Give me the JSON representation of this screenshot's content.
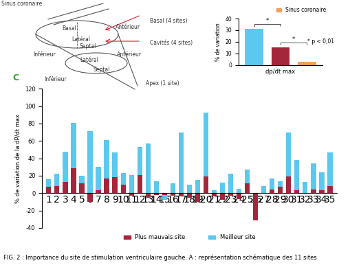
{
  "diagram": {
    "labels": [
      "Sinus coronaire",
      "Basal (4 sites)",
      "Cavités (4 sites)",
      "Apex (1 site)",
      "Basal",
      "Antérieur",
      "Latéral",
      "Septal",
      "Inférieur",
      "Antérieur",
      "Latéral",
      "Septal",
      "Inférieur"
    ]
  },
  "chart_data": [
    {
      "type": "bar",
      "title": "C",
      "y_label": "% de variation de la dP/dt max",
      "categories": [
        "1",
        "2",
        "3",
        "4",
        "5",
        "6",
        "7",
        "8",
        "9",
        "10",
        "11",
        "12",
        "13",
        "14",
        "15",
        "16",
        "17",
        "18",
        "19",
        "20",
        "21",
        "22",
        "23",
        "24",
        "25",
        "26",
        "27",
        "28",
        "29",
        "30",
        "31",
        "32",
        "33",
        "34",
        "35"
      ],
      "series": [
        {
          "name": "Plus mauvais site",
          "color": "#a3263a",
          "values": [
            7,
            8,
            13,
            29,
            11,
            -10,
            3,
            17,
            18,
            10,
            -3,
            21,
            -5,
            -2,
            -2,
            -3,
            -4,
            -5,
            -10,
            19,
            -4,
            -8,
            -3,
            -7,
            11,
            -31,
            0,
            4,
            7,
            19,
            3,
            0,
            4,
            3,
            8
          ]
        },
        {
          "name": "Meilleur site",
          "color": "#5bc8ee",
          "values": [
            16,
            22,
            48,
            81,
            20,
            71,
            30,
            61,
            47,
            23,
            21,
            53,
            57,
            14,
            -8,
            11,
            70,
            10,
            15,
            93,
            3,
            12,
            22,
            5,
            27,
            -20,
            8,
            17,
            14,
            70,
            38,
            13,
            34,
            24,
            47
          ]
        }
      ],
      "ylim": [
        -40,
        120
      ],
      "yticks": [
        -40,
        -20,
        0,
        20,
        40,
        60,
        80,
        100,
        120
      ],
      "legend": "bottom"
    },
    {
      "type": "bar",
      "x_label": "dp/dt max",
      "y_label": "% de variation",
      "series": [
        {
          "color": "#5bc8ee",
          "values": [
            31
          ]
        },
        {
          "color": "#a3263a",
          "values": [
            15
          ]
        },
        {
          "name": "Sinus coronaire",
          "color": "#f0a058",
          "values": [
            2.5
          ]
        }
      ],
      "ylim": [
        0,
        40
      ],
      "yticks": [
        0,
        10,
        20,
        30,
        40
      ],
      "annotations": [
        "*",
        "*",
        "* p < 0,01"
      ],
      "legend": "upper right",
      "tick_labels": "y"
    }
  ],
  "caption": "FIG. 2 : Importance du site de stimulation ventriculaire gauche. A : représentation schématique des 11 sites"
}
